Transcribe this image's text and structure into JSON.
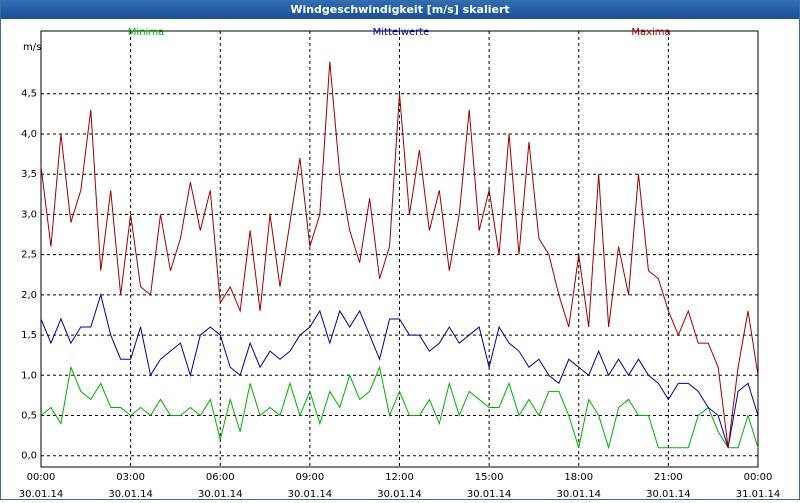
{
  "chart_data": {
    "type": "line",
    "title": "Windgeschwindigkeit [m/s] skaliert",
    "y_label": "m/s",
    "x": [
      0,
      20,
      40,
      60,
      80,
      100,
      120,
      140,
      160,
      180,
      200,
      220,
      240,
      260,
      280,
      300,
      320,
      340,
      360,
      380,
      400,
      420,
      440,
      460,
      480,
      500,
      520,
      540,
      560,
      580,
      600,
      620,
      640,
      660,
      680,
      700,
      720,
      740,
      760,
      780,
      800,
      820,
      840,
      860,
      880,
      900,
      920,
      940,
      960,
      980,
      1000,
      1020,
      1040,
      1060,
      1080,
      1100,
      1120,
      1140,
      1160,
      1180,
      1200,
      1220,
      1240,
      1260,
      1280,
      1300,
      1320,
      1340,
      1360,
      1380,
      1400,
      1420,
      1440
    ],
    "xlim": [
      0,
      1440
    ],
    "xticks": [
      {
        "value": 0,
        "label": "00:00\n30.01.14"
      },
      {
        "value": 180,
        "label": "03:00\n30.01.14"
      },
      {
        "value": 360,
        "label": "06:00\n30.01.14"
      },
      {
        "value": 540,
        "label": "09:00\n30.01.14"
      },
      {
        "value": 720,
        "label": "12:00\n30.01.14"
      },
      {
        "value": 900,
        "label": "15:00\n30.01.14"
      },
      {
        "value": 1080,
        "label": "18:00\n30.01.14"
      },
      {
        "value": 1260,
        "label": "21:00\n30.01.14"
      },
      {
        "value": 1440,
        "label": "00:00\n31.01.14"
      }
    ],
    "ylim": [
      -0.14,
      5.28
    ],
    "yticks": [
      {
        "value": 0,
        "label": "0,0"
      },
      {
        "value": 0.5,
        "label": "0,5"
      },
      {
        "value": 1,
        "label": "1,0"
      },
      {
        "value": 1.5,
        "label": "1,5"
      },
      {
        "value": 2,
        "label": "2,0"
      },
      {
        "value": 2.5,
        "label": "2,5"
      },
      {
        "value": 3,
        "label": "3,0"
      },
      {
        "value": 3.5,
        "label": "3,5"
      },
      {
        "value": 4,
        "label": "4,0"
      },
      {
        "value": 4.5,
        "label": "4,5"
      }
    ],
    "grid": true,
    "series": [
      {
        "name": "Minima",
        "color": "#00b000",
        "values": [
          0.5,
          0.6,
          0.4,
          1.1,
          0.8,
          0.7,
          0.9,
          0.6,
          0.6,
          0.5,
          0.6,
          0.5,
          0.7,
          0.5,
          0.5,
          0.6,
          0.5,
          0.7,
          0.2,
          0.7,
          0.3,
          0.9,
          0.5,
          0.6,
          0.5,
          0.9,
          0.5,
          0.8,
          0.4,
          0.8,
          0.6,
          1.0,
          0.7,
          0.8,
          1.1,
          0.5,
          0.8,
          0.5,
          0.5,
          0.7,
          0.4,
          0.9,
          0.5,
          0.8,
          0.7,
          0.6,
          0.6,
          0.9,
          0.5,
          0.7,
          0.5,
          0.8,
          0.8,
          0.5,
          0.1,
          0.7,
          0.5,
          0.1,
          0.6,
          0.7,
          0.5,
          0.5,
          0.1,
          0.1,
          0.1,
          0.1,
          0.5,
          0.6,
          0.3,
          0.1,
          0.1,
          0.5,
          0.1
        ]
      },
      {
        "name": "Mittelwerte",
        "color": "#0000a0",
        "values": [
          1.7,
          1.4,
          1.7,
          1.4,
          1.6,
          1.6,
          2.0,
          1.5,
          1.2,
          1.2,
          1.6,
          1.0,
          1.2,
          1.3,
          1.4,
          1.0,
          1.5,
          1.6,
          1.5,
          1.1,
          1.0,
          1.4,
          1.1,
          1.3,
          1.2,
          1.3,
          1.5,
          1.6,
          1.8,
          1.4,
          1.8,
          1.6,
          1.8,
          1.5,
          1.2,
          1.7,
          1.7,
          1.5,
          1.5,
          1.3,
          1.4,
          1.6,
          1.4,
          1.5,
          1.6,
          1.1,
          1.6,
          1.4,
          1.3,
          1.1,
          1.2,
          1.0,
          0.9,
          1.2,
          1.1,
          1.0,
          1.3,
          1.0,
          1.2,
          1.0,
          1.2,
          1.0,
          0.9,
          0.7,
          0.9,
          0.9,
          0.8,
          0.6,
          0.5,
          0.1,
          0.8,
          0.9,
          0.5
        ]
      },
      {
        "name": "Maxima",
        "color": "#a00000",
        "values": [
          3.6,
          2.6,
          4.0,
          2.9,
          3.3,
          4.3,
          2.3,
          3.3,
          2.0,
          3.0,
          2.1,
          2.0,
          3.0,
          2.3,
          2.7,
          3.4,
          2.8,
          3.3,
          1.9,
          2.1,
          1.8,
          2.8,
          1.8,
          3.0,
          2.1,
          2.9,
          3.7,
          2.6,
          3.0,
          4.9,
          3.5,
          2.8,
          2.4,
          3.2,
          2.2,
          2.6,
          4.5,
          3.0,
          3.8,
          2.8,
          3.3,
          2.3,
          3.0,
          4.3,
          2.8,
          3.3,
          2.5,
          4.0,
          2.5,
          3.9,
          2.7,
          2.5,
          2.0,
          1.6,
          2.5,
          1.6,
          3.5,
          1.6,
          2.6,
          2.0,
          3.5,
          2.3,
          2.2,
          1.8,
          1.5,
          1.8,
          1.4,
          1.4,
          1.1,
          0.1,
          1.1,
          1.8,
          1.0
        ]
      }
    ]
  }
}
